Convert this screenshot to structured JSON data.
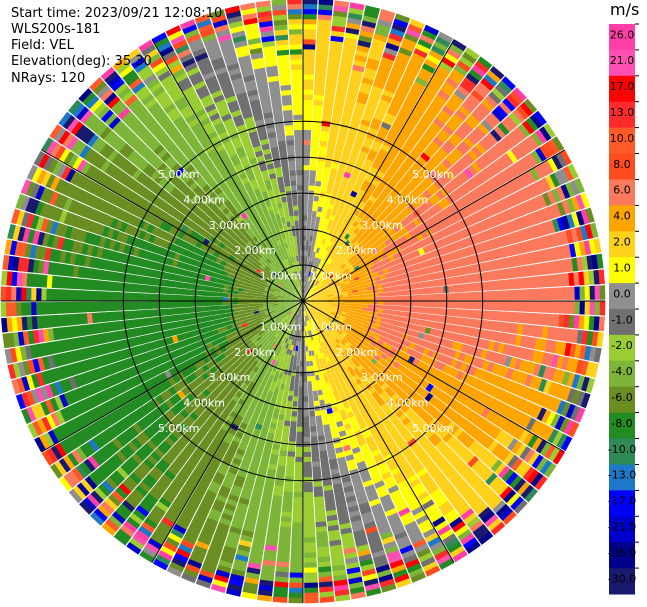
{
  "header": {
    "start_time": "Start time: 2023/09/21 12:08:10",
    "instrument": "WLS200s-181",
    "field": "Field: VEL",
    "elevation": "Elevation(deg): 35.30",
    "nrays": "NRays: 120"
  },
  "chart_data": {
    "type": "ppi",
    "field": "VEL",
    "units": "m/s",
    "n_rays": 120,
    "elevation_deg": 35.3,
    "range_rings_km": [
      1,
      2,
      3,
      4,
      5
    ],
    "ring_labels": [
      "1.00km",
      "2.00km",
      "3.00km",
      "4.00km",
      "5.00km"
    ],
    "max_range_km": 5.0,
    "velocity_field_sketch": {
      "description_values_ms": "radial wind peaks near +7 toward azimuth ~100 deg and -7 toward ~280 deg",
      "peak_positive": 7,
      "peak_negative": -7,
      "noise_start_km": 4.6
    },
    "colorbar": {
      "ticks": [
        "26.0",
        "21.0",
        "17.0",
        "13.0",
        "10.0",
        "8.0",
        "6.0",
        "4.0",
        "2.0",
        "1.0",
        "0.0",
        "-1.0",
        "-2.0",
        "-4.0",
        "-6.0",
        "-8.0",
        "-10.0",
        "-13.0",
        "-17.0",
        "-21.0",
        "-26.0",
        "-30.0"
      ],
      "bands": [
        {
          "lo": 26,
          "hi": 30,
          "color": "#ff3fa6"
        },
        {
          "lo": 21,
          "hi": 26,
          "color": "#ff4fb0"
        },
        {
          "lo": 17,
          "hi": 21,
          "color": "#ff0000"
        },
        {
          "lo": 13,
          "hi": 17,
          "color": "#ff2a2a"
        },
        {
          "lo": 10,
          "hi": 13,
          "color": "#ff5a28"
        },
        {
          "lo": 8,
          "hi": 10,
          "color": "#ff4b1e"
        },
        {
          "lo": 6,
          "hi": 8,
          "color": "#fb7a5e"
        },
        {
          "lo": 4,
          "hi": 6,
          "color": "#ffa500"
        },
        {
          "lo": 2,
          "hi": 4,
          "color": "#ffd11a"
        },
        {
          "lo": 1,
          "hi": 2,
          "color": "#ffff00"
        },
        {
          "lo": 0,
          "hi": 1,
          "color": "#8f8f8f"
        },
        {
          "lo": -1,
          "hi": 0,
          "color": "#707070"
        },
        {
          "lo": -2,
          "hi": -1,
          "color": "#9acd32"
        },
        {
          "lo": -4,
          "hi": -2,
          "color": "#7db538"
        },
        {
          "lo": -6,
          "hi": -4,
          "color": "#6b8e23"
        },
        {
          "lo": -8,
          "hi": -6,
          "color": "#228b22"
        },
        {
          "lo": -10,
          "hi": -8,
          "color": "#2e8b57"
        },
        {
          "lo": -13,
          "hi": -10,
          "color": "#1e78c8"
        },
        {
          "lo": -17,
          "hi": -13,
          "color": "#0000ff"
        },
        {
          "lo": -21,
          "hi": -17,
          "color": "#0000cd"
        },
        {
          "lo": -26,
          "hi": -21,
          "color": "#00008b"
        },
        {
          "lo": -30,
          "hi": -26,
          "color": "#191970"
        }
      ]
    }
  }
}
